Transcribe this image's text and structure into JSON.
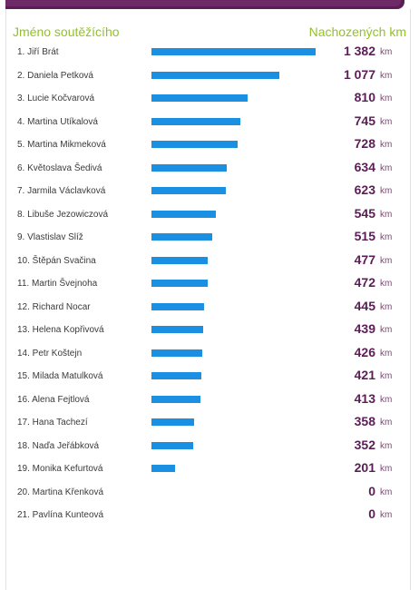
{
  "header": {
    "name_label": "Jméno soutěžícího",
    "distance_label": "Nachozených km"
  },
  "unit": "km",
  "scale_max": 1382,
  "rows": [
    {
      "label": "1. Jiří Brát",
      "value": "1 382",
      "km": 1382
    },
    {
      "label": "2. Daniela Petková",
      "value": "1 077",
      "km": 1077
    },
    {
      "label": "3. Lucie Kočvarová",
      "value": "810",
      "km": 810
    },
    {
      "label": "4. Martina Utíkalová",
      "value": "745",
      "km": 745
    },
    {
      "label": "5. Martina Mikmeková",
      "value": "728",
      "km": 728
    },
    {
      "label": "6. Květoslava Šedivá",
      "value": "634",
      "km": 634
    },
    {
      "label": "7. Jarmila Václavková",
      "value": "623",
      "km": 623
    },
    {
      "label": "8. Libuše Jezowiczová",
      "value": "545",
      "km": 545
    },
    {
      "label": "9. Vlastislav Slíž",
      "value": "515",
      "km": 515
    },
    {
      "label": "10. Štěpán Svačina",
      "value": "477",
      "km": 477
    },
    {
      "label": "11. Martin Švejnoha",
      "value": "472",
      "km": 472
    },
    {
      "label": "12. Richard Nocar",
      "value": "445",
      "km": 445
    },
    {
      "label": "13. Helena Kopřivová",
      "value": "439",
      "km": 439
    },
    {
      "label": "14. Petr Koštejn",
      "value": "426",
      "km": 426
    },
    {
      "label": "15. Milada Matulková",
      "value": "421",
      "km": 421
    },
    {
      "label": "16. Alena Fejtlová",
      "value": "413",
      "km": 413
    },
    {
      "label": "17. Hana Tachezí",
      "value": "358",
      "km": 358
    },
    {
      "label": "18. Naďa Jeřábková",
      "value": "352",
      "km": 352
    },
    {
      "label": "19. Monika Kefurtová",
      "value": "201",
      "km": 201
    },
    {
      "label": "20. Martina Křenková",
      "value": "0",
      "km": 0
    },
    {
      "label": "21. Pavlína Kunteová",
      "value": "0",
      "km": 0
    }
  ],
  "colors": {
    "bar": "#1b8fe2",
    "value": "#5b1d55",
    "header": "#93c12a",
    "top_bar": "#5b1d55"
  }
}
